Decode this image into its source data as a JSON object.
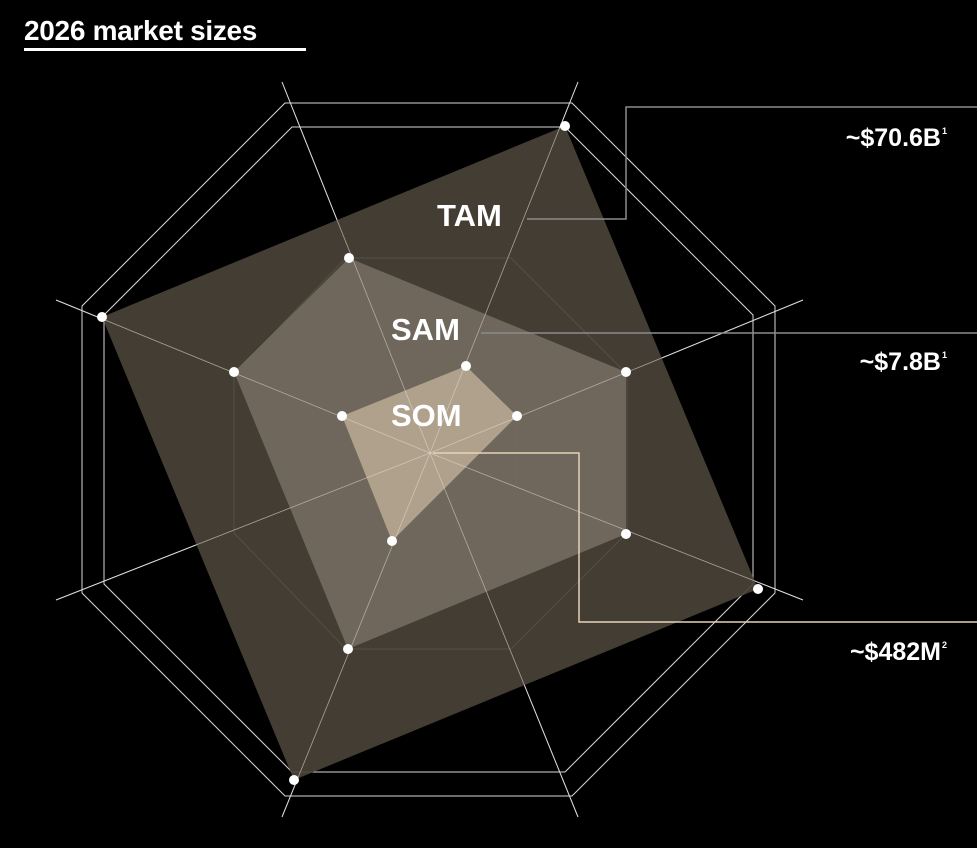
{
  "title": "2026 market sizes",
  "tiers": [
    {
      "name": "TAM",
      "value": "~$70.6B",
      "footnote": "1"
    },
    {
      "name": "SAM",
      "value": "~$7.8B",
      "footnote": "1"
    },
    {
      "name": "SOM",
      "value": "~$482M",
      "footnote": "2"
    }
  ],
  "colors": {
    "background": "#000000",
    "grid": "#d9d9d9",
    "tam_fill": "#4a4238",
    "sam_fill": "#736a5e",
    "som_fill": "#b3a48f",
    "connector_tam": "#8c8c8c",
    "connector_som": "#e6d3b8"
  }
}
